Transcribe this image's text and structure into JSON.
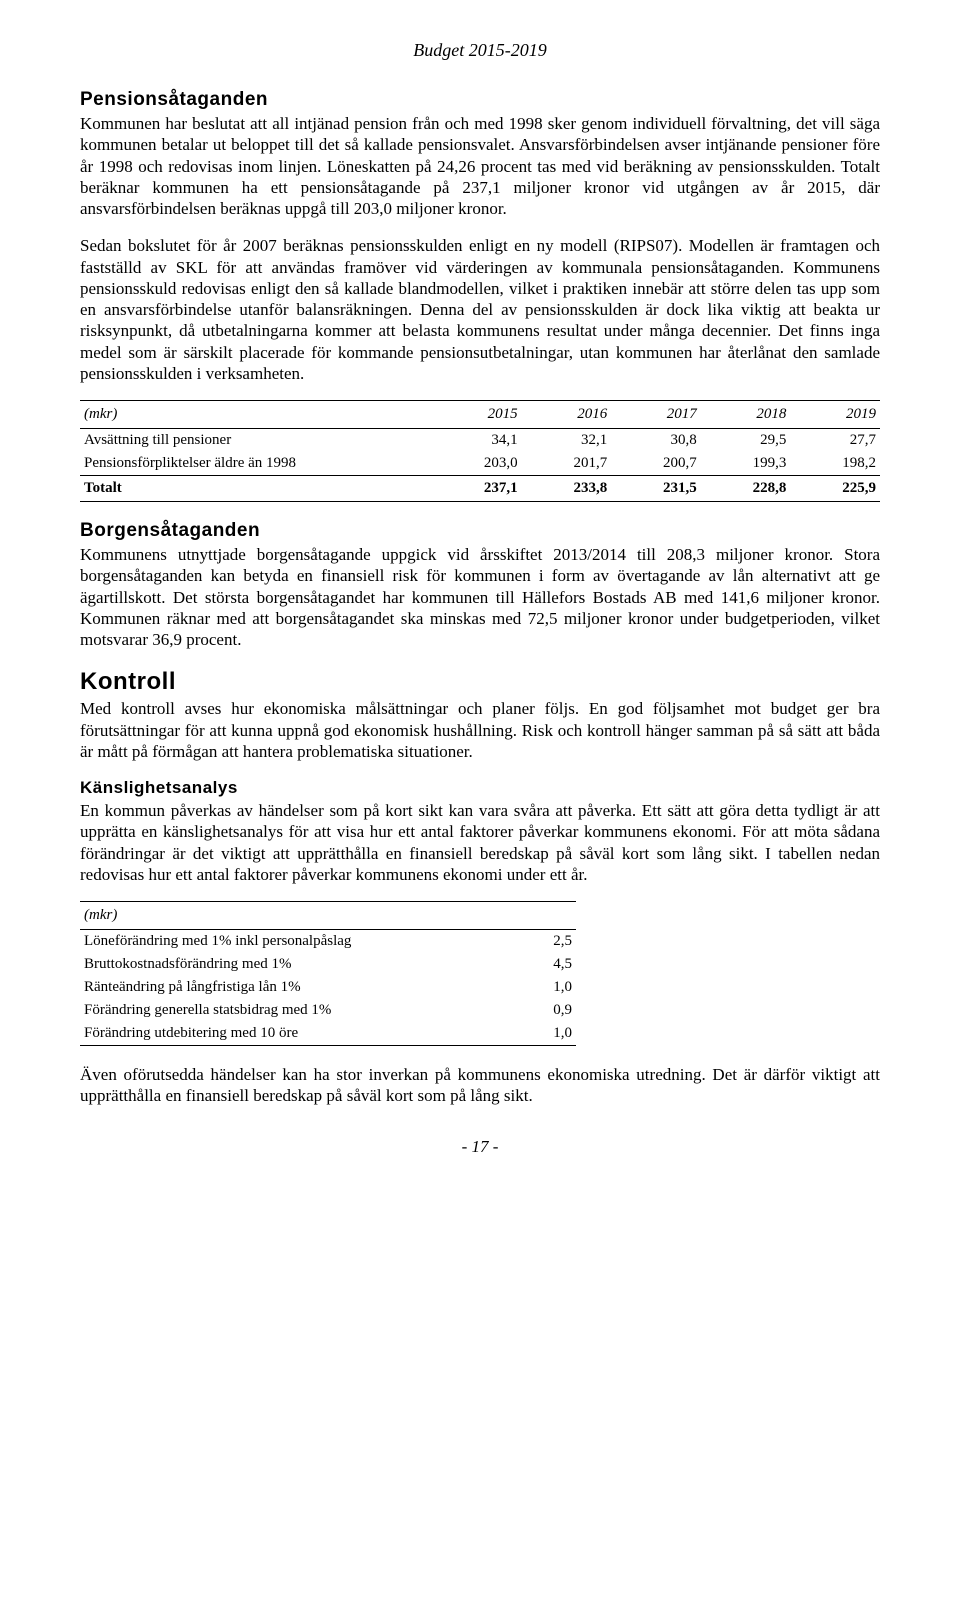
{
  "header": "Budget 2015-2019",
  "sect1": {
    "title": "Pensionsåtaganden",
    "p1": "Kommunen har beslutat att all intjänad pension från och med 1998 sker genom individuell förvaltning, det vill säga kommunen betalar ut beloppet till det så kallade pensionsvalet. Ansvarsförbindelsen avser intjänande pensioner före år 1998 och redovisas inom linjen. Löneskatten på 24,26 procent tas med vid beräkning av pensionsskulden. Totalt beräknar kommunen ha ett pensionsåtagande på 237,1 miljoner kronor vid utgången av år 2015, där ansvarsförbindelsen beräknas uppgå till 203,0 miljoner kronor.",
    "p2": "Sedan bokslutet för år 2007 beräknas pensionsskulden enligt en ny modell (RIPS07). Modellen är framtagen och fastställd av SKL för att användas framöver vid värderingen av kommunala pensionsåtaganden. Kommunens pensionsskuld redovisas enligt den så kallade blandmodellen, vilket i praktiken innebär att större delen tas upp som en ansvarsförbindelse utanför balansräkningen. Denna del av pensionsskulden är dock lika viktig att beakta ur risksynpunkt, då utbetalningarna kommer att belasta kommunens resultat under många decennier. Det finns inga medel som är särskilt placerade för kommande pensionsutbetalningar, utan kommunen har återlånat den samlade pensionsskulden i verksamheten."
  },
  "table1": {
    "head": [
      "(mkr)",
      "2015",
      "2016",
      "2017",
      "2018",
      "2019"
    ],
    "rows": [
      [
        "Avsättning till pensioner",
        "34,1",
        "32,1",
        "30,8",
        "29,5",
        "27,7"
      ],
      [
        "Pensionsförpliktelser äldre än 1998",
        "203,0",
        "201,7",
        "200,7",
        "199,3",
        "198,2"
      ]
    ],
    "totals": [
      "Totalt",
      "237,1",
      "233,8",
      "231,5",
      "228,8",
      "225,9"
    ]
  },
  "sect2": {
    "title": "Borgensåtaganden",
    "p1": "Kommunens utnyttjade borgensåtagande uppgick vid årsskiftet 2013/2014 till 208,3 miljoner kronor. Stora borgensåtaganden kan betyda en finansiell risk för kommunen i form av övertagande av lån alternativt att ge ägartillskott. Det största borgensåtagandet har kommunen till Hällefors Bostads AB med 141,6 miljoner kronor. Kommunen räknar med att borgensåtagandet ska minskas med 72,5 miljoner kronor under budgetperioden, vilket motsvarar 36,9 procent."
  },
  "sect3": {
    "title": "Kontroll",
    "p1": "Med kontroll avses hur ekonomiska målsättningar och planer följs. En god följsamhet mot budget ger bra förutsättningar för att kunna uppnå god ekonomisk hushållning. Risk och kontroll hänger samman på så sätt att båda är mått på förmågan att hantera problematiska situationer."
  },
  "sect4": {
    "title": "Känslighetsanalys",
    "p1": "En kommun påverkas av händelser som på kort sikt kan vara svåra att påverka. Ett sätt att göra detta tydligt är att upprätta en känslighetsanalys för att visa hur ett antal faktorer påverkar kommunens ekonomi. För att möta sådana förändringar är det viktigt att upprätthålla en finansiell beredskap på såväl kort som lång sikt. I tabellen nedan redovisas hur ett antal faktorer påverkar kommunens ekonomi under ett år."
  },
  "table2": {
    "head": "(mkr)",
    "rows": [
      [
        "Löneförändring med 1% inkl personalpåslag",
        "2,5"
      ],
      [
        "Bruttokostnadsförändring med 1%",
        "4,5"
      ],
      [
        "Ränteändring på långfristiga lån 1%",
        "1,0"
      ],
      [
        "Förändring generella statsbidrag med 1%",
        "0,9"
      ],
      [
        "Förändring utdebitering med 10 öre",
        "1,0"
      ]
    ]
  },
  "closing": "Även oförutsedda händelser kan ha stor inverkan på kommunens ekonomiska utredning. Det är därför viktigt att upprätthålla en finansiell beredskap på såväl kort som på lång sikt.",
  "footer": "- 17 -"
}
